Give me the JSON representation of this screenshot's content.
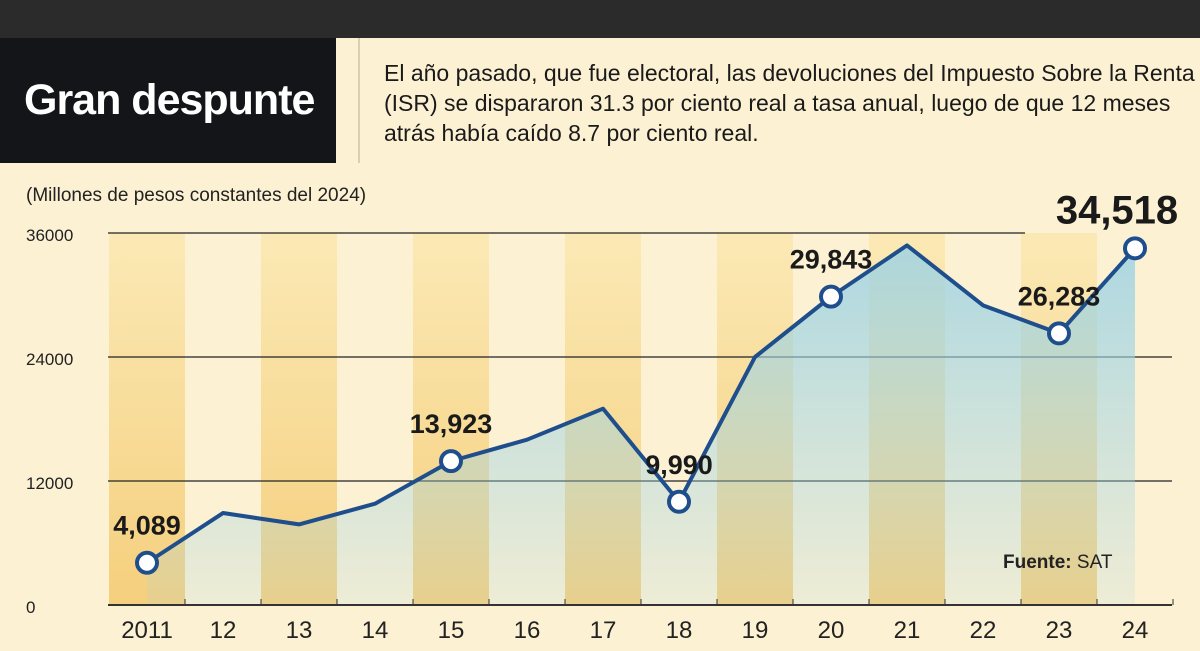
{
  "header": {
    "title": "Gran despunte",
    "description": "El año pasado, que fue electoral, las devoluciones del Impuesto Sobre la Renta (ISR) se dispararon 31.3 por ciento real a tasa anual, luego de que 12 meses atrás había caído 8.7 por ciento real."
  },
  "source": {
    "label": "Fuente:",
    "value": "SAT"
  },
  "colors": {
    "line": "#1f4e8c",
    "fill": "#9fd3e3",
    "stripe": "#f5cf7d",
    "background": "#fcf1d3"
  },
  "chart_data": {
    "type": "area",
    "title": "Gran despunte",
    "ylabel": "(Millones de pesos constantes del 2024)",
    "xlabel": "",
    "categories": [
      "2011",
      "12",
      "13",
      "14",
      "15",
      "16",
      "17",
      "18",
      "19",
      "20",
      "21",
      "22",
      "23",
      "24"
    ],
    "values": [
      4089,
      8900,
      7800,
      9800,
      13923,
      16000,
      19000,
      9990,
      24000,
      29843,
      34800,
      29000,
      26283,
      34518
    ],
    "labeled_points": [
      {
        "index": 0,
        "label": "4,089"
      },
      {
        "index": 4,
        "label": "13,923"
      },
      {
        "index": 7,
        "label": "9,990"
      },
      {
        "index": 9,
        "label": "29,843"
      },
      {
        "index": 12,
        "label": "26,283"
      },
      {
        "index": 13,
        "label": "34,518"
      }
    ],
    "yticks": [
      "0",
      "12000",
      "24000",
      "36000"
    ],
    "ylim": [
      0,
      36000
    ],
    "grid": true
  }
}
